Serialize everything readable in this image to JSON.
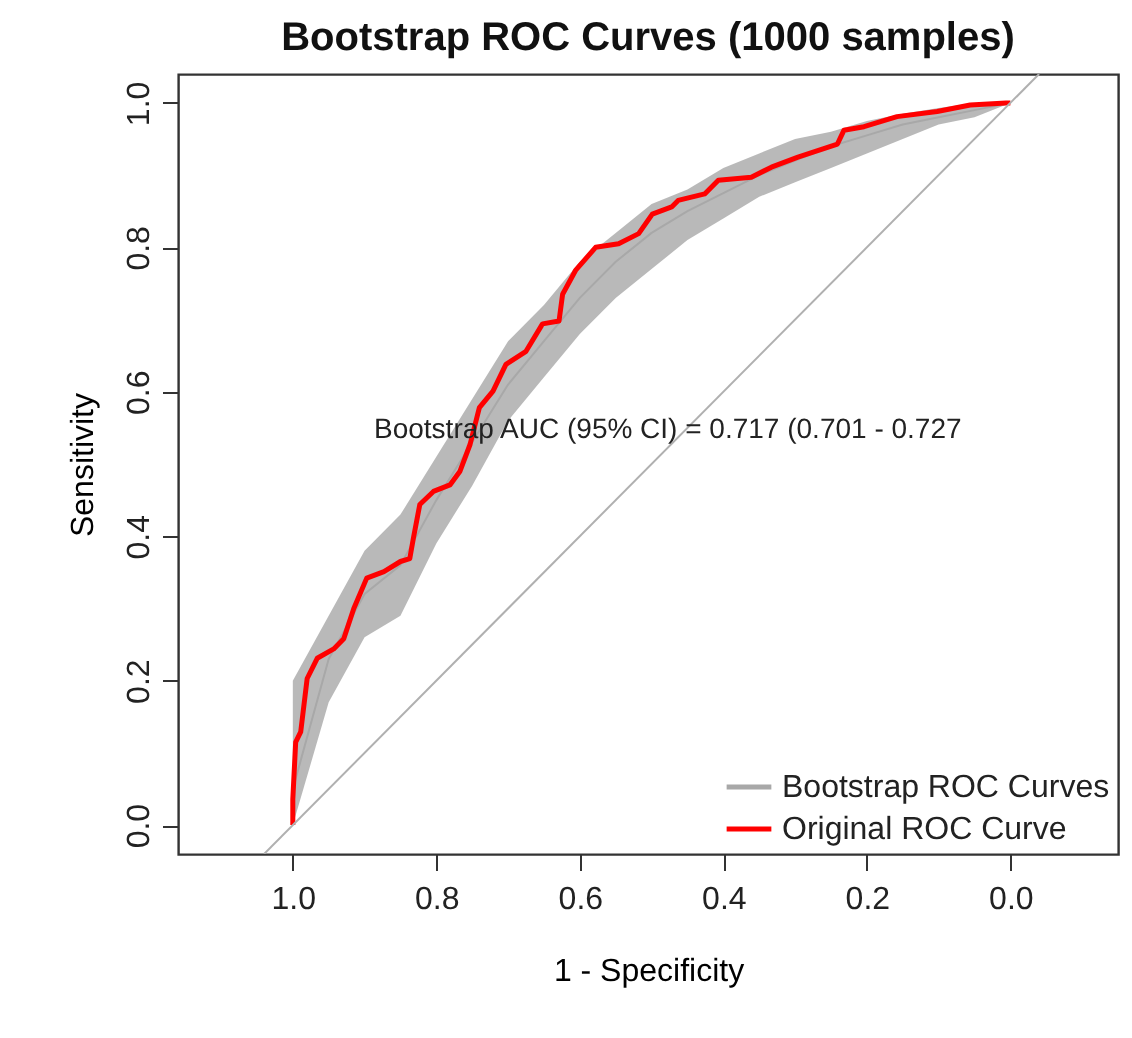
{
  "chart_data": {
    "type": "line",
    "title": "Bootstrap ROC Curves (1000 samples)",
    "xlabel": "1 - Specificity",
    "ylabel": "Sensitivity",
    "xlim": [
      1.16,
      -0.15
    ],
    "xticks": [
      {
        "value": 1,
        "label": "1.0"
      },
      0.8,
      0.6,
      0.4,
      0.2,
      {
        "value": 0,
        "label": "0.0"
      }
    ],
    "ylim": [
      -0.04,
      1.04
    ],
    "yticks": [
      {
        "value": 0,
        "label": "0.0"
      },
      0.2,
      0.4,
      0.6,
      0.8,
      {
        "value": 1,
        "label": "1.0"
      }
    ],
    "grid": false,
    "legend": "bottom right",
    "marker": "none",
    "line_style": "solid",
    "annotations": [
      "Bootstrap AUC (95% CI) = 0.717 (0.701 - 0.727"
    ],
    "series": [
      {
        "name": "Bootstrap ROC Curves",
        "color": "#a8a8a8",
        "x": [
          1.0,
          0.95,
          0.9,
          0.85,
          0.8,
          0.75,
          0.7,
          0.65,
          0.6,
          0.55,
          0.5,
          0.45,
          0.4,
          0.35,
          0.3,
          0.25,
          0.2,
          0.15,
          0.1,
          0.05,
          0.0
        ],
        "values": [
          0.05,
          0.23,
          0.32,
          0.36,
          0.45,
          0.53,
          0.61,
          0.67,
          0.73,
          0.78,
          0.82,
          0.85,
          0.875,
          0.9,
          0.92,
          0.94,
          0.955,
          0.97,
          0.98,
          0.99,
          1.0
        ],
        "lower": [
          0.0,
          0.17,
          0.26,
          0.29,
          0.39,
          0.47,
          0.56,
          0.62,
          0.68,
          0.73,
          0.77,
          0.81,
          0.84,
          0.87,
          0.89,
          0.91,
          0.93,
          0.95,
          0.97,
          0.98,
          1.0
        ],
        "upper": [
          0.2,
          0.29,
          0.38,
          0.43,
          0.51,
          0.59,
          0.67,
          0.72,
          0.78,
          0.82,
          0.86,
          0.88,
          0.91,
          0.93,
          0.95,
          0.96,
          0.975,
          0.985,
          0.993,
          1.0,
          1.0
        ]
      },
      {
        "name": "Original ROC Curve",
        "color": "#ff0000",
        "x": [
          1.0,
          1.0,
          0.996,
          0.989,
          0.98,
          0.966,
          0.943,
          0.929,
          0.915,
          0.897,
          0.873,
          0.85,
          0.837,
          0.832,
          0.823,
          0.804,
          0.781,
          0.767,
          0.753,
          0.74,
          0.721,
          0.703,
          0.675,
          0.652,
          0.629,
          0.624,
          0.606,
          0.578,
          0.546,
          0.518,
          0.499,
          0.472,
          0.463,
          0.426,
          0.407,
          0.361,
          0.333,
          0.296,
          0.241,
          0.232,
          0.204,
          0.158,
          0.102,
          0.056,
          0.006,
          0.0
        ],
        "values": [
          0.0,
          0.036,
          0.115,
          0.129,
          0.203,
          0.231,
          0.244,
          0.258,
          0.3,
          0.342,
          0.351,
          0.365,
          0.369,
          0.397,
          0.444,
          0.462,
          0.471,
          0.49,
          0.527,
          0.578,
          0.601,
          0.638,
          0.656,
          0.694,
          0.698,
          0.735,
          0.768,
          0.8,
          0.805,
          0.819,
          0.846,
          0.856,
          0.865,
          0.874,
          0.893,
          0.897,
          0.911,
          0.925,
          0.943,
          0.962,
          0.967,
          0.981,
          0.988,
          0.997,
          1.0,
          1.0
        ]
      },
      {
        "color": "#b0b0b0",
        "x": [
          1.04,
          -0.04
        ],
        "values": [
          -0.04,
          1.04
        ]
      }
    ]
  }
}
